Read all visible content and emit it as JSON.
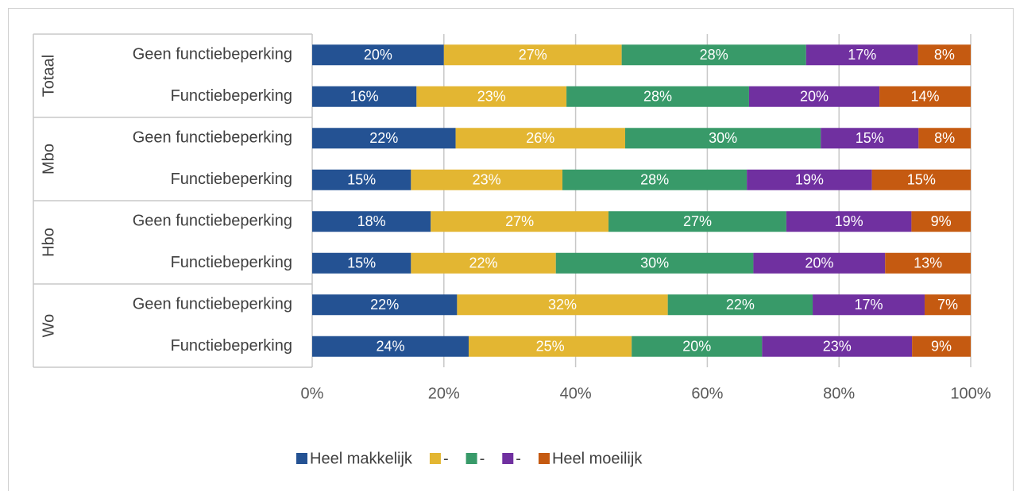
{
  "chart_data": {
    "type": "stacked_percent_bar_horizontal",
    "groups": [
      {
        "name": "Totaal",
        "categories": [
          "Geen functiebeperking",
          "Functiebeperking"
        ]
      },
      {
        "name": "Mbo",
        "categories": [
          "Geen functiebeperking",
          "Functiebeperking"
        ]
      },
      {
        "name": "Hbo",
        "categories": [
          "Geen functiebeperking",
          "Functiebeperking"
        ]
      },
      {
        "name": "Wo",
        "categories": [
          "Geen functiebeperking",
          "Functiebeperking"
        ]
      }
    ],
    "series": [
      {
        "name": "Heel makkelijk",
        "color": "#245293",
        "values": [
          20,
          16,
          22,
          15,
          18,
          15,
          22,
          24
        ],
        "value_labels": [
          "20%",
          "16%",
          "22%",
          "15%",
          "18%",
          "15%",
          "22%",
          "24%"
        ]
      },
      {
        "name": "-",
        "color": "#e3b632",
        "values": [
          27,
          23,
          26,
          23,
          27,
          22,
          32,
          25
        ],
        "value_labels": [
          "27%",
          "23%",
          "26%",
          "23%",
          "27%",
          "22%",
          "32%",
          "25%"
        ]
      },
      {
        "name": "-",
        "color": "#389a69",
        "values": [
          28,
          28,
          30,
          28,
          27,
          30,
          22,
          20
        ],
        "value_labels": [
          "28%",
          "28%",
          "30%",
          "28%",
          "27%",
          "30%",
          "22%",
          "20%"
        ]
      },
      {
        "name": "-",
        "color": "#7030a0",
        "values": [
          17,
          20,
          15,
          19,
          19,
          20,
          17,
          23
        ],
        "value_labels": [
          "17%",
          "20%",
          "15%",
          "19%",
          "19%",
          "20%",
          "17%",
          "23%"
        ]
      },
      {
        "name": "Heel moeilijk",
        "color": "#c55a11",
        "values": [
          8,
          14,
          8,
          15,
          9,
          13,
          7,
          9
        ],
        "value_labels": [
          "8%",
          "14%",
          "8%",
          "15%",
          "9%",
          "13%",
          "7%",
          "9%"
        ]
      }
    ],
    "xlim": [
      0,
      100
    ],
    "xticks": [
      {
        "value": 0,
        "label": "0%"
      },
      {
        "value": 20,
        "label": "20%"
      },
      {
        "value": 40,
        "label": "40%"
      },
      {
        "value": 60,
        "label": "60%"
      },
      {
        "value": 80,
        "label": "80%"
      },
      {
        "value": 100,
        "label": "100%"
      }
    ],
    "grid": true,
    "legend": "bottom"
  }
}
